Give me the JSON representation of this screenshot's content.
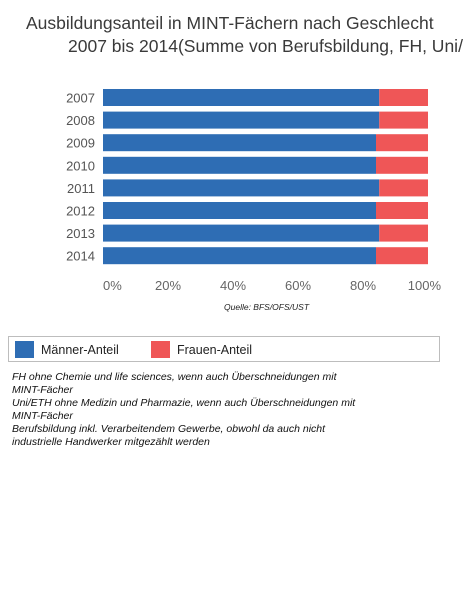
{
  "title_line1": "Ausbildungsanteil in MINT-Fächern nach Geschlecht",
  "title_line2": "2007 bis 2014(Summe von Berufsbildung, FH, Uni/",
  "source": "Quelle: BFS/OFS/UST",
  "legend": [
    {
      "label": "Männer-Anteil",
      "color": "#2e6db4"
    },
    {
      "label": "Frauen-Anteil",
      "color": "#ef5657"
    }
  ],
  "notes": [
    "FH ohne Chemie und life sciences, wenn auch Überschneidungen mit",
    "MINT-Fächer",
    "Uni/ETH ohne Medizin und Pharmazie, wenn auch Überschneidungen mit",
    "MINT-Fächer",
    "Berufsbildung inkl. Verarbeitendem Gewerbe, obwohl da auch nicht",
    "industrielle Handwerker mitgezählt werden"
  ],
  "chart_data": {
    "type": "bar",
    "orientation": "horizontal",
    "stacked": true,
    "categories": [
      "2007",
      "2008",
      "2009",
      "2010",
      "2011",
      "2012",
      "2013",
      "2014"
    ],
    "series": [
      {
        "name": "Männer-Anteil",
        "values": [
          85,
          85,
          84,
          84,
          85,
          84,
          85,
          84
        ],
        "color": "#2e6db4"
      },
      {
        "name": "Frauen-Anteil",
        "values": [
          15,
          15,
          16,
          16,
          15,
          16,
          15,
          16
        ],
        "color": "#ef5657"
      }
    ],
    "x_ticks": [
      "0%",
      "20%",
      "40%",
      "60%",
      "80%",
      "100%"
    ],
    "xlim": [
      0,
      100
    ],
    "grid": false,
    "legend_position": "bottom"
  }
}
